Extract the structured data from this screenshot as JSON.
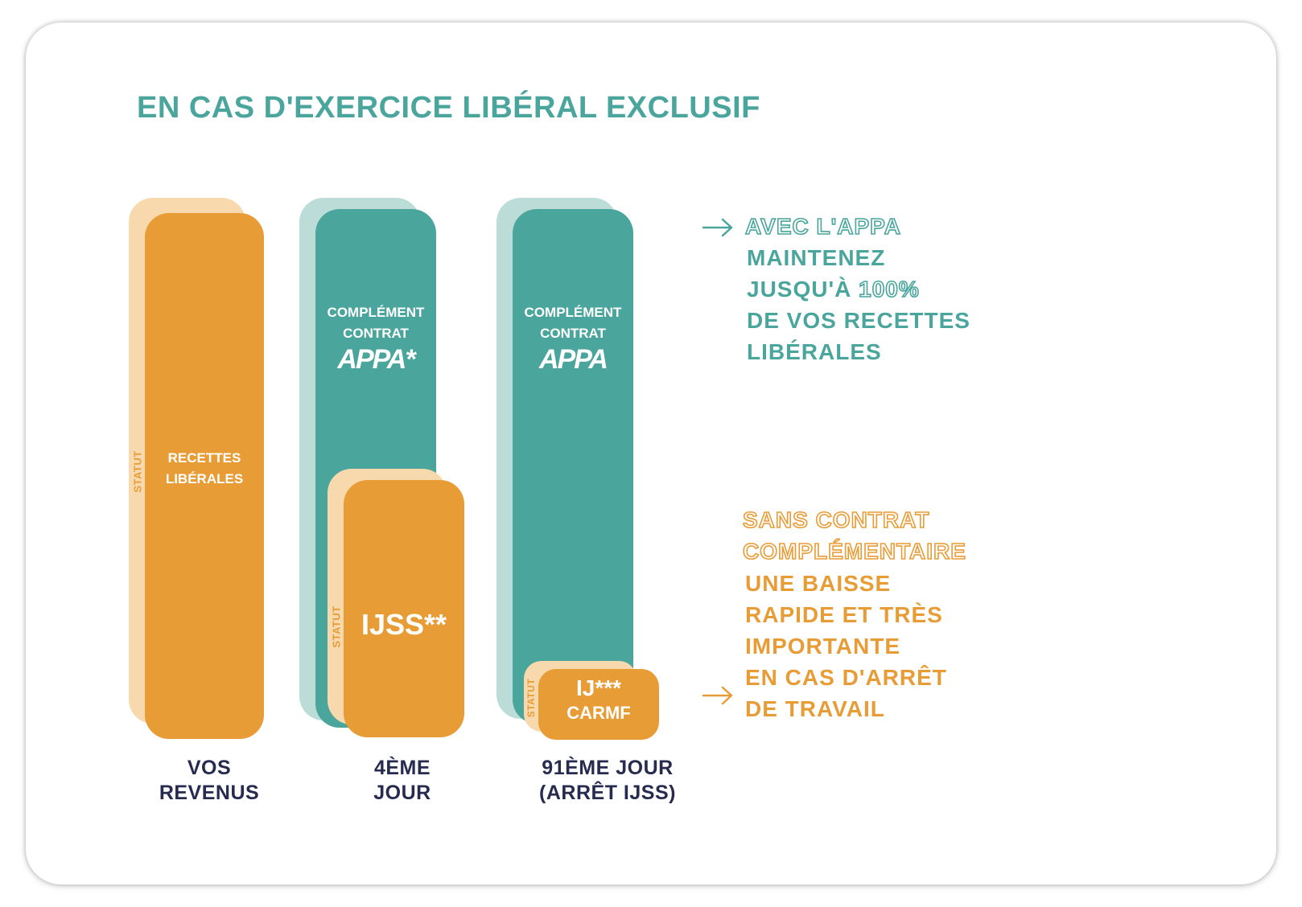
{
  "title": "EN CAS D'EXERCICE LIBÉRAL EXCLUSIF",
  "colors": {
    "teal": "#4aa59c",
    "orange": "#e89c36",
    "light_teal": "#bcdcd7",
    "light_orange": "#f7d9ad",
    "navy": "#262b4f"
  },
  "columns": [
    {
      "label_lines": [
        "VOS",
        "REVENUS"
      ],
      "statut": "STATUT",
      "main_lines": [
        "RECETTES",
        "LIBÉRALES"
      ]
    },
    {
      "label_lines": [
        "4ÈME",
        "JOUR"
      ],
      "top_lines": [
        "COMPLÉMENT",
        "CONTRAT"
      ],
      "logo": "APPA*",
      "statut": "STATUT",
      "bottom": "IJSS**"
    },
    {
      "label_lines": [
        "91ÈME JOUR",
        "(ARRÊT IJSS)"
      ],
      "top_lines": [
        "COMPLÉMENT",
        "CONTRAT"
      ],
      "logo": "APPA",
      "statut": "STATUT",
      "bottom_lines": [
        "IJ***",
        "CARMF"
      ]
    }
  ],
  "callout_top": {
    "highlight": "AVEC L'APPA",
    "lines": [
      "MAINTENEZ",
      "JUSQU'À",
      "100%",
      "DE VOS RECETTES",
      "LIBÉRALES"
    ]
  },
  "callout_bottom": {
    "highlight_lines": [
      "SANS CONTRAT",
      "COMPLÉMENTAIRE"
    ],
    "lines": [
      "UNE BAISSE",
      "RAPIDE ET TRÈS",
      "IMPORTANTE",
      "EN CAS D'ARRÊT",
      "DE TRAVAIL"
    ]
  }
}
